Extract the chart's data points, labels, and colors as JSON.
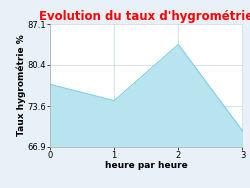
{
  "title": "Evolution du taux d'hygrométrie",
  "title_color": "#ff0000",
  "xlabel": "heure par heure",
  "ylabel": "Taux hygrométrie %",
  "x": [
    0,
    1,
    2,
    3
  ],
  "y": [
    77.2,
    74.5,
    83.8,
    69.5
  ],
  "ylim": [
    66.9,
    87.1
  ],
  "xlim": [
    0,
    3
  ],
  "yticks": [
    66.9,
    73.6,
    80.4,
    87.1
  ],
  "xticks": [
    0,
    1,
    2,
    3
  ],
  "line_color": "#7fcce0",
  "fill_color": "#b8e4f0",
  "background_color": "#e8f0f8",
  "plot_bg_color": "#ffffff",
  "grid_color": "#ccddee",
  "title_fontsize": 8.5,
  "label_fontsize": 6.5,
  "tick_fontsize": 6
}
